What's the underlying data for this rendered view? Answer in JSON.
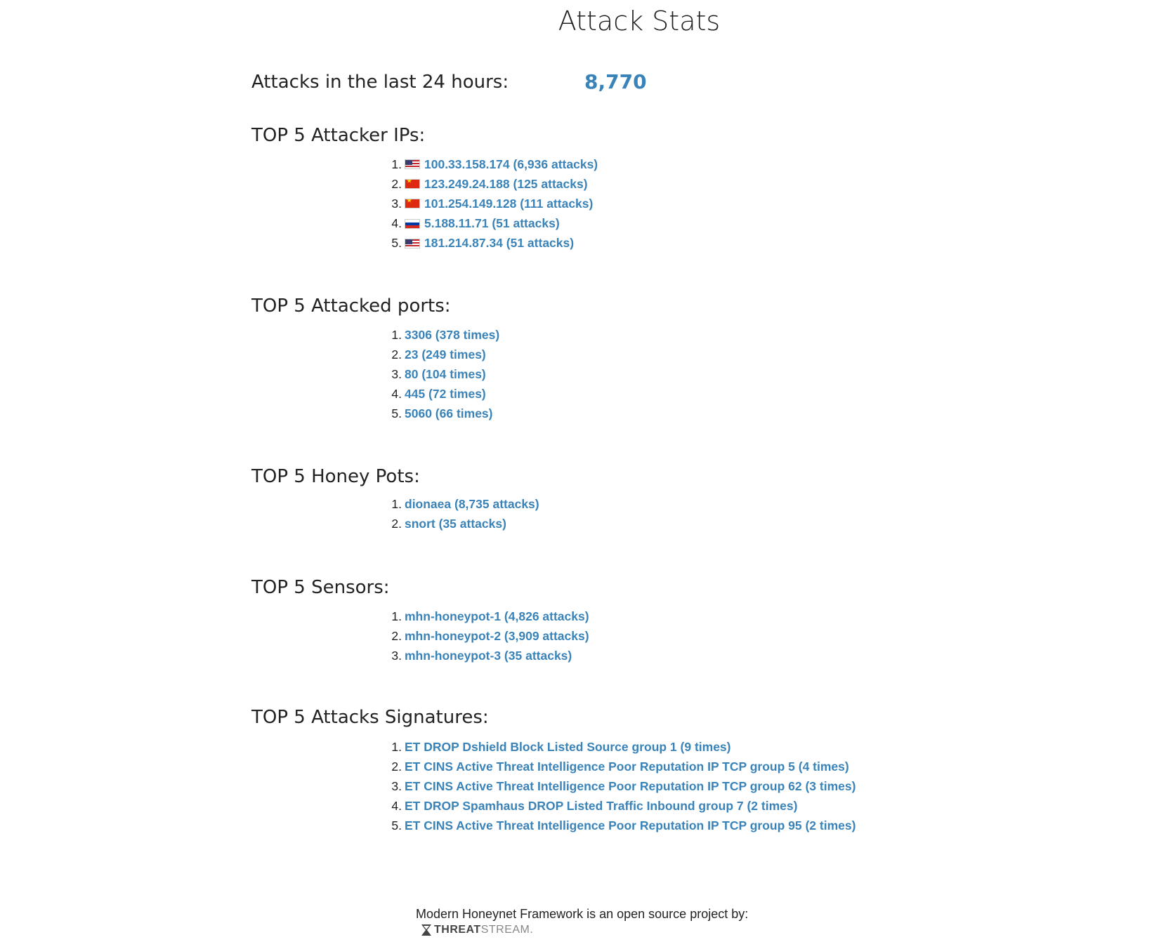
{
  "title": "Attack Stats",
  "attacks_24h": {
    "label": "Attacks in the last 24 hours:",
    "value": "8,770"
  },
  "attacker_ips": {
    "heading": "TOP 5 Attacker IPs:",
    "items": [
      {
        "n": "1.",
        "flag": "us-flag-icon",
        "text": "100.33.158.174 (6,936 attacks)"
      },
      {
        "n": "2.",
        "flag": "cn-flag-icon",
        "text": "123.249.24.188 (125 attacks)"
      },
      {
        "n": "3.",
        "flag": "cn-flag-icon",
        "text": "101.254.149.128 (111 attacks)"
      },
      {
        "n": "4.",
        "flag": "ru-flag-icon",
        "text": "5.188.11.71 (51 attacks)"
      },
      {
        "n": "5.",
        "flag": "us-flag-icon",
        "text": "181.214.87.34 (51 attacks)"
      }
    ]
  },
  "attacked_ports": {
    "heading": "TOP 5 Attacked ports:",
    "items": [
      {
        "n": "1.",
        "text": "3306 (378 times)"
      },
      {
        "n": "2.",
        "text": "23 (249 times)"
      },
      {
        "n": "3.",
        "text": "80 (104 times)"
      },
      {
        "n": "4.",
        "text": "445 (72 times)"
      },
      {
        "n": "5.",
        "text": "5060 (66 times)"
      }
    ]
  },
  "honeypots": {
    "heading": "TOP 5 Honey Pots:",
    "items": [
      {
        "n": "1.",
        "text": "dionaea (8,735 attacks)"
      },
      {
        "n": "2.",
        "text": "snort (35 attacks)"
      }
    ]
  },
  "sensors": {
    "heading": "TOP 5 Sensors:",
    "items": [
      {
        "n": "1.",
        "text": "mhn-honeypot-1 (4,826 attacks)"
      },
      {
        "n": "2.",
        "text": "mhn-honeypot-2 (3,909 attacks)"
      },
      {
        "n": "3.",
        "text": "mhn-honeypot-3 (35 attacks)"
      }
    ]
  },
  "signatures": {
    "heading": "TOP 5 Attacks Signatures:",
    "items": [
      {
        "n": "1.",
        "text": "ET DROP Dshield Block Listed Source group 1 (9 times)"
      },
      {
        "n": "2.",
        "text": "ET CINS Active Threat Intelligence Poor Reputation IP TCP group 5 (4 times)"
      },
      {
        "n": "3.",
        "text": "ET CINS Active Threat Intelligence Poor Reputation IP TCP group 62 (3 times)"
      },
      {
        "n": "4.",
        "text": "ET DROP Spamhaus DROP Listed Traffic Inbound group 7 (2 times)"
      },
      {
        "n": "5.",
        "text": "ET CINS Active Threat Intelligence Poor Reputation IP TCP group 95 (2 times)"
      }
    ]
  },
  "footer": {
    "text": "Modern Honeynet Framework is an open source project by:",
    "logo_bold": "THREAT",
    "logo_light": "STREAM."
  },
  "colors": {
    "link": "#3a83b9",
    "text": "#222222"
  }
}
